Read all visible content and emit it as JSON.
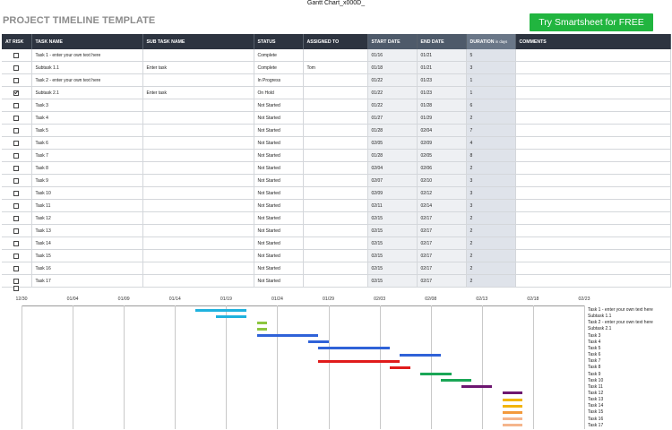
{
  "window_title": "Gantt Chart_x000D_",
  "page_title": "PROJECT TIMELINE TEMPLATE",
  "cta_label": "Try Smartsheet for FREE",
  "colors": {
    "header_bg": "#2d3440",
    "date_header_bg": "#4e5a6a",
    "duration_header_bg": "#6a7788",
    "cta_green": "#21b53f",
    "title_gray": "#8c8c8c"
  },
  "table": {
    "headers": {
      "at_risk": "AT RISK",
      "task_name": "TASK NAME",
      "sub_task_name": "SUB TASK NAME",
      "status": "STATUS",
      "assigned_to": "ASSIGNED TO",
      "start_date": "START DATE",
      "end_date": "END DATE",
      "duration": "DURATION",
      "duration_unit": "in days",
      "comments": "COMMENTS"
    },
    "rows": [
      {
        "at_risk": false,
        "task": "Task 1 - enter your own text here",
        "sub": "",
        "status": "Complete",
        "assigned": "",
        "start": "01/16",
        "end": "01/21",
        "duration": "5",
        "comments": ""
      },
      {
        "at_risk": false,
        "task": "Subtask 1.1",
        "sub": "Enter task",
        "status": "Complete",
        "assigned": "Tom",
        "start": "01/18",
        "end": "01/21",
        "duration": "3",
        "comments": ""
      },
      {
        "at_risk": false,
        "task": "Task 2 - enter your own text here",
        "sub": "",
        "status": "In Progress",
        "assigned": "",
        "start": "01/22",
        "end": "01/23",
        "duration": "1",
        "comments": ""
      },
      {
        "at_risk": true,
        "task": "Subtask 2.1",
        "sub": "Enter task",
        "status": "On Hold",
        "assigned": "",
        "start": "01/22",
        "end": "01/23",
        "duration": "1",
        "comments": ""
      },
      {
        "at_risk": false,
        "task": "Task 3",
        "sub": "",
        "status": "Not Started",
        "assigned": "",
        "start": "01/22",
        "end": "01/28",
        "duration": "6",
        "comments": ""
      },
      {
        "at_risk": false,
        "task": "Task 4",
        "sub": "",
        "status": "Not Started",
        "assigned": "",
        "start": "01/27",
        "end": "01/29",
        "duration": "2",
        "comments": ""
      },
      {
        "at_risk": false,
        "task": "Task 5",
        "sub": "",
        "status": "Not Started",
        "assigned": "",
        "start": "01/28",
        "end": "02/04",
        "duration": "7",
        "comments": ""
      },
      {
        "at_risk": false,
        "task": "Task 6",
        "sub": "",
        "status": "Not Started",
        "assigned": "",
        "start": "02/05",
        "end": "02/09",
        "duration": "4",
        "comments": ""
      },
      {
        "at_risk": false,
        "task": "Task 7",
        "sub": "",
        "status": "Not Started",
        "assigned": "",
        "start": "01/28",
        "end": "02/05",
        "duration": "8",
        "comments": ""
      },
      {
        "at_risk": false,
        "task": "Task 8",
        "sub": "",
        "status": "Not Started",
        "assigned": "",
        "start": "02/04",
        "end": "02/06",
        "duration": "2",
        "comments": ""
      },
      {
        "at_risk": false,
        "task": "Task 9",
        "sub": "",
        "status": "Not Started",
        "assigned": "",
        "start": "02/07",
        "end": "02/10",
        "duration": "3",
        "comments": ""
      },
      {
        "at_risk": false,
        "task": "Task 10",
        "sub": "",
        "status": "Not Started",
        "assigned": "",
        "start": "02/09",
        "end": "02/12",
        "duration": "3",
        "comments": ""
      },
      {
        "at_risk": false,
        "task": "Task 11",
        "sub": "",
        "status": "Not Started",
        "assigned": "",
        "start": "02/11",
        "end": "02/14",
        "duration": "3",
        "comments": ""
      },
      {
        "at_risk": false,
        "task": "Task 12",
        "sub": "",
        "status": "Not Started",
        "assigned": "",
        "start": "02/15",
        "end": "02/17",
        "duration": "2",
        "comments": ""
      },
      {
        "at_risk": false,
        "task": "Task 13",
        "sub": "",
        "status": "Not Started",
        "assigned": "",
        "start": "02/15",
        "end": "02/17",
        "duration": "2",
        "comments": ""
      },
      {
        "at_risk": false,
        "task": "Task 14",
        "sub": "",
        "status": "Not Started",
        "assigned": "",
        "start": "02/15",
        "end": "02/17",
        "duration": "2",
        "comments": ""
      },
      {
        "at_risk": false,
        "task": "Task 15",
        "sub": "",
        "status": "Not Started",
        "assigned": "",
        "start": "02/15",
        "end": "02/17",
        "duration": "2",
        "comments": ""
      },
      {
        "at_risk": false,
        "task": "Task 16",
        "sub": "",
        "status": "Not Started",
        "assigned": "",
        "start": "02/15",
        "end": "02/17",
        "duration": "2",
        "comments": ""
      },
      {
        "at_risk": false,
        "task": "Task 17",
        "sub": "",
        "status": "Not Started",
        "assigned": "",
        "start": "02/15",
        "end": "02/17",
        "duration": "2",
        "comments": ""
      }
    ],
    "trailing_checkbox_checked": false
  },
  "gantt": {
    "axis_ticks": [
      "12/30",
      "01/04",
      "01/09",
      "01/14",
      "01/19",
      "01/24",
      "01/29",
      "02/03",
      "02/08",
      "02/13",
      "02/18",
      "02/23"
    ],
    "axis_start": "12/30",
    "axis_end": "02/23",
    "tasks": [
      {
        "label": "Task 1 - enter your own text here",
        "start": "01/16",
        "end": "01/21",
        "color": "#1fb2de"
      },
      {
        "label": "Subtask 1.1",
        "start": "01/18",
        "end": "01/21",
        "color": "#1fb2de"
      },
      {
        "label": "Task 2 - enter your own text here",
        "start": "01/22",
        "end": "01/23",
        "color": "#8cc63f"
      },
      {
        "label": "Subtask 2.1",
        "start": "01/22",
        "end": "01/23",
        "color": "#8cc63f"
      },
      {
        "label": "Task 3",
        "start": "01/22",
        "end": "01/28",
        "color": "#2f62d8"
      },
      {
        "label": "Task 4",
        "start": "01/27",
        "end": "01/29",
        "color": "#2f62d8"
      },
      {
        "label": "Task 5",
        "start": "01/28",
        "end": "02/04",
        "color": "#2f62d8"
      },
      {
        "label": "Task 6",
        "start": "02/05",
        "end": "02/09",
        "color": "#2f62d8"
      },
      {
        "label": "Task 7",
        "start": "01/28",
        "end": "02/05",
        "color": "#e01b1b"
      },
      {
        "label": "Task 8",
        "start": "02/04",
        "end": "02/06",
        "color": "#e01b1b"
      },
      {
        "label": "Task 9",
        "start": "02/07",
        "end": "02/10",
        "color": "#1aa656"
      },
      {
        "label": "Task 10",
        "start": "02/09",
        "end": "02/12",
        "color": "#1aa656"
      },
      {
        "label": "Task 11",
        "start": "02/11",
        "end": "02/14",
        "color": "#6d1670"
      },
      {
        "label": "Task 12",
        "start": "02/15",
        "end": "02/17",
        "color": "#6d1670"
      },
      {
        "label": "Task 13",
        "start": "02/15",
        "end": "02/17",
        "color": "#f2b50c"
      },
      {
        "label": "Task 14",
        "start": "02/15",
        "end": "02/17",
        "color": "#f2b50c"
      },
      {
        "label": "Task 15",
        "start": "02/15",
        "end": "02/17",
        "color": "#f39a3c"
      },
      {
        "label": "Task 16",
        "start": "02/15",
        "end": "02/17",
        "color": "#f5b58c"
      },
      {
        "label": "Task 17",
        "start": "02/15",
        "end": "02/17",
        "color": "#f5b58c"
      }
    ]
  }
}
